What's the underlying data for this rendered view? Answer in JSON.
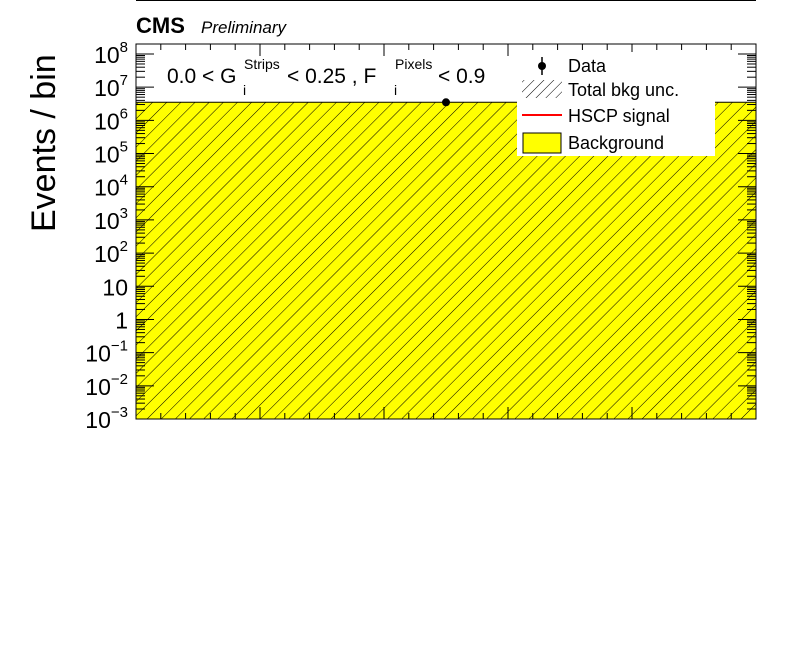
{
  "header": {
    "experiment": "CMS",
    "status": "Preliminary"
  },
  "annotation": {
    "prefix": "0.0 < G",
    "g_sup": "Strips",
    "g_sub": "i",
    "middle": " < 0.25 , F",
    "f_sup": "Pixels",
    "f_sub": "i",
    "suffix": " < 0.9"
  },
  "colors": {
    "background_fill": "#ffff00",
    "hatch": "#000000",
    "signal": "#ff0000",
    "data": "#000000"
  },
  "chart_data": {
    "type": "bar",
    "ylabel": "Events / bin",
    "yscale": "log",
    "ylim": [
      0.001,
      200000000
    ],
    "ytick_labels": [
      {
        "base": "10",
        "exp": "8"
      },
      {
        "base": "10",
        "exp": "7"
      },
      {
        "base": "10",
        "exp": "6"
      },
      {
        "base": "10",
        "exp": "5"
      },
      {
        "base": "10",
        "exp": "4"
      },
      {
        "base": "10",
        "exp": "3"
      },
      {
        "base": "10",
        "exp": "2"
      },
      {
        "base": "10",
        "exp": ""
      },
      {
        "base": "1",
        "exp": ""
      },
      {
        "base": "10",
        "exp": "−1"
      },
      {
        "base": "10",
        "exp": "−2"
      },
      {
        "base": "10",
        "exp": "−3"
      }
    ],
    "ytick_values": [
      100000000,
      10000000,
      1000000,
      100000,
      10000,
      1000,
      100,
      10,
      1,
      0.1,
      0.01,
      0.001
    ],
    "background": {
      "value": 3500000
    },
    "total_bkg_unc": {
      "value": 3500000
    },
    "data_points": [
      {
        "x": 0.5,
        "y": 3500000
      }
    ],
    "legend": {
      "position": "top-right",
      "entries": [
        {
          "label": "Data",
          "style": "marker"
        },
        {
          "label": "Total bkg unc.",
          "style": "hatch"
        },
        {
          "label": "HSCP signal",
          "style": "line"
        },
        {
          "label": "Background",
          "style": "fill"
        }
      ]
    }
  }
}
